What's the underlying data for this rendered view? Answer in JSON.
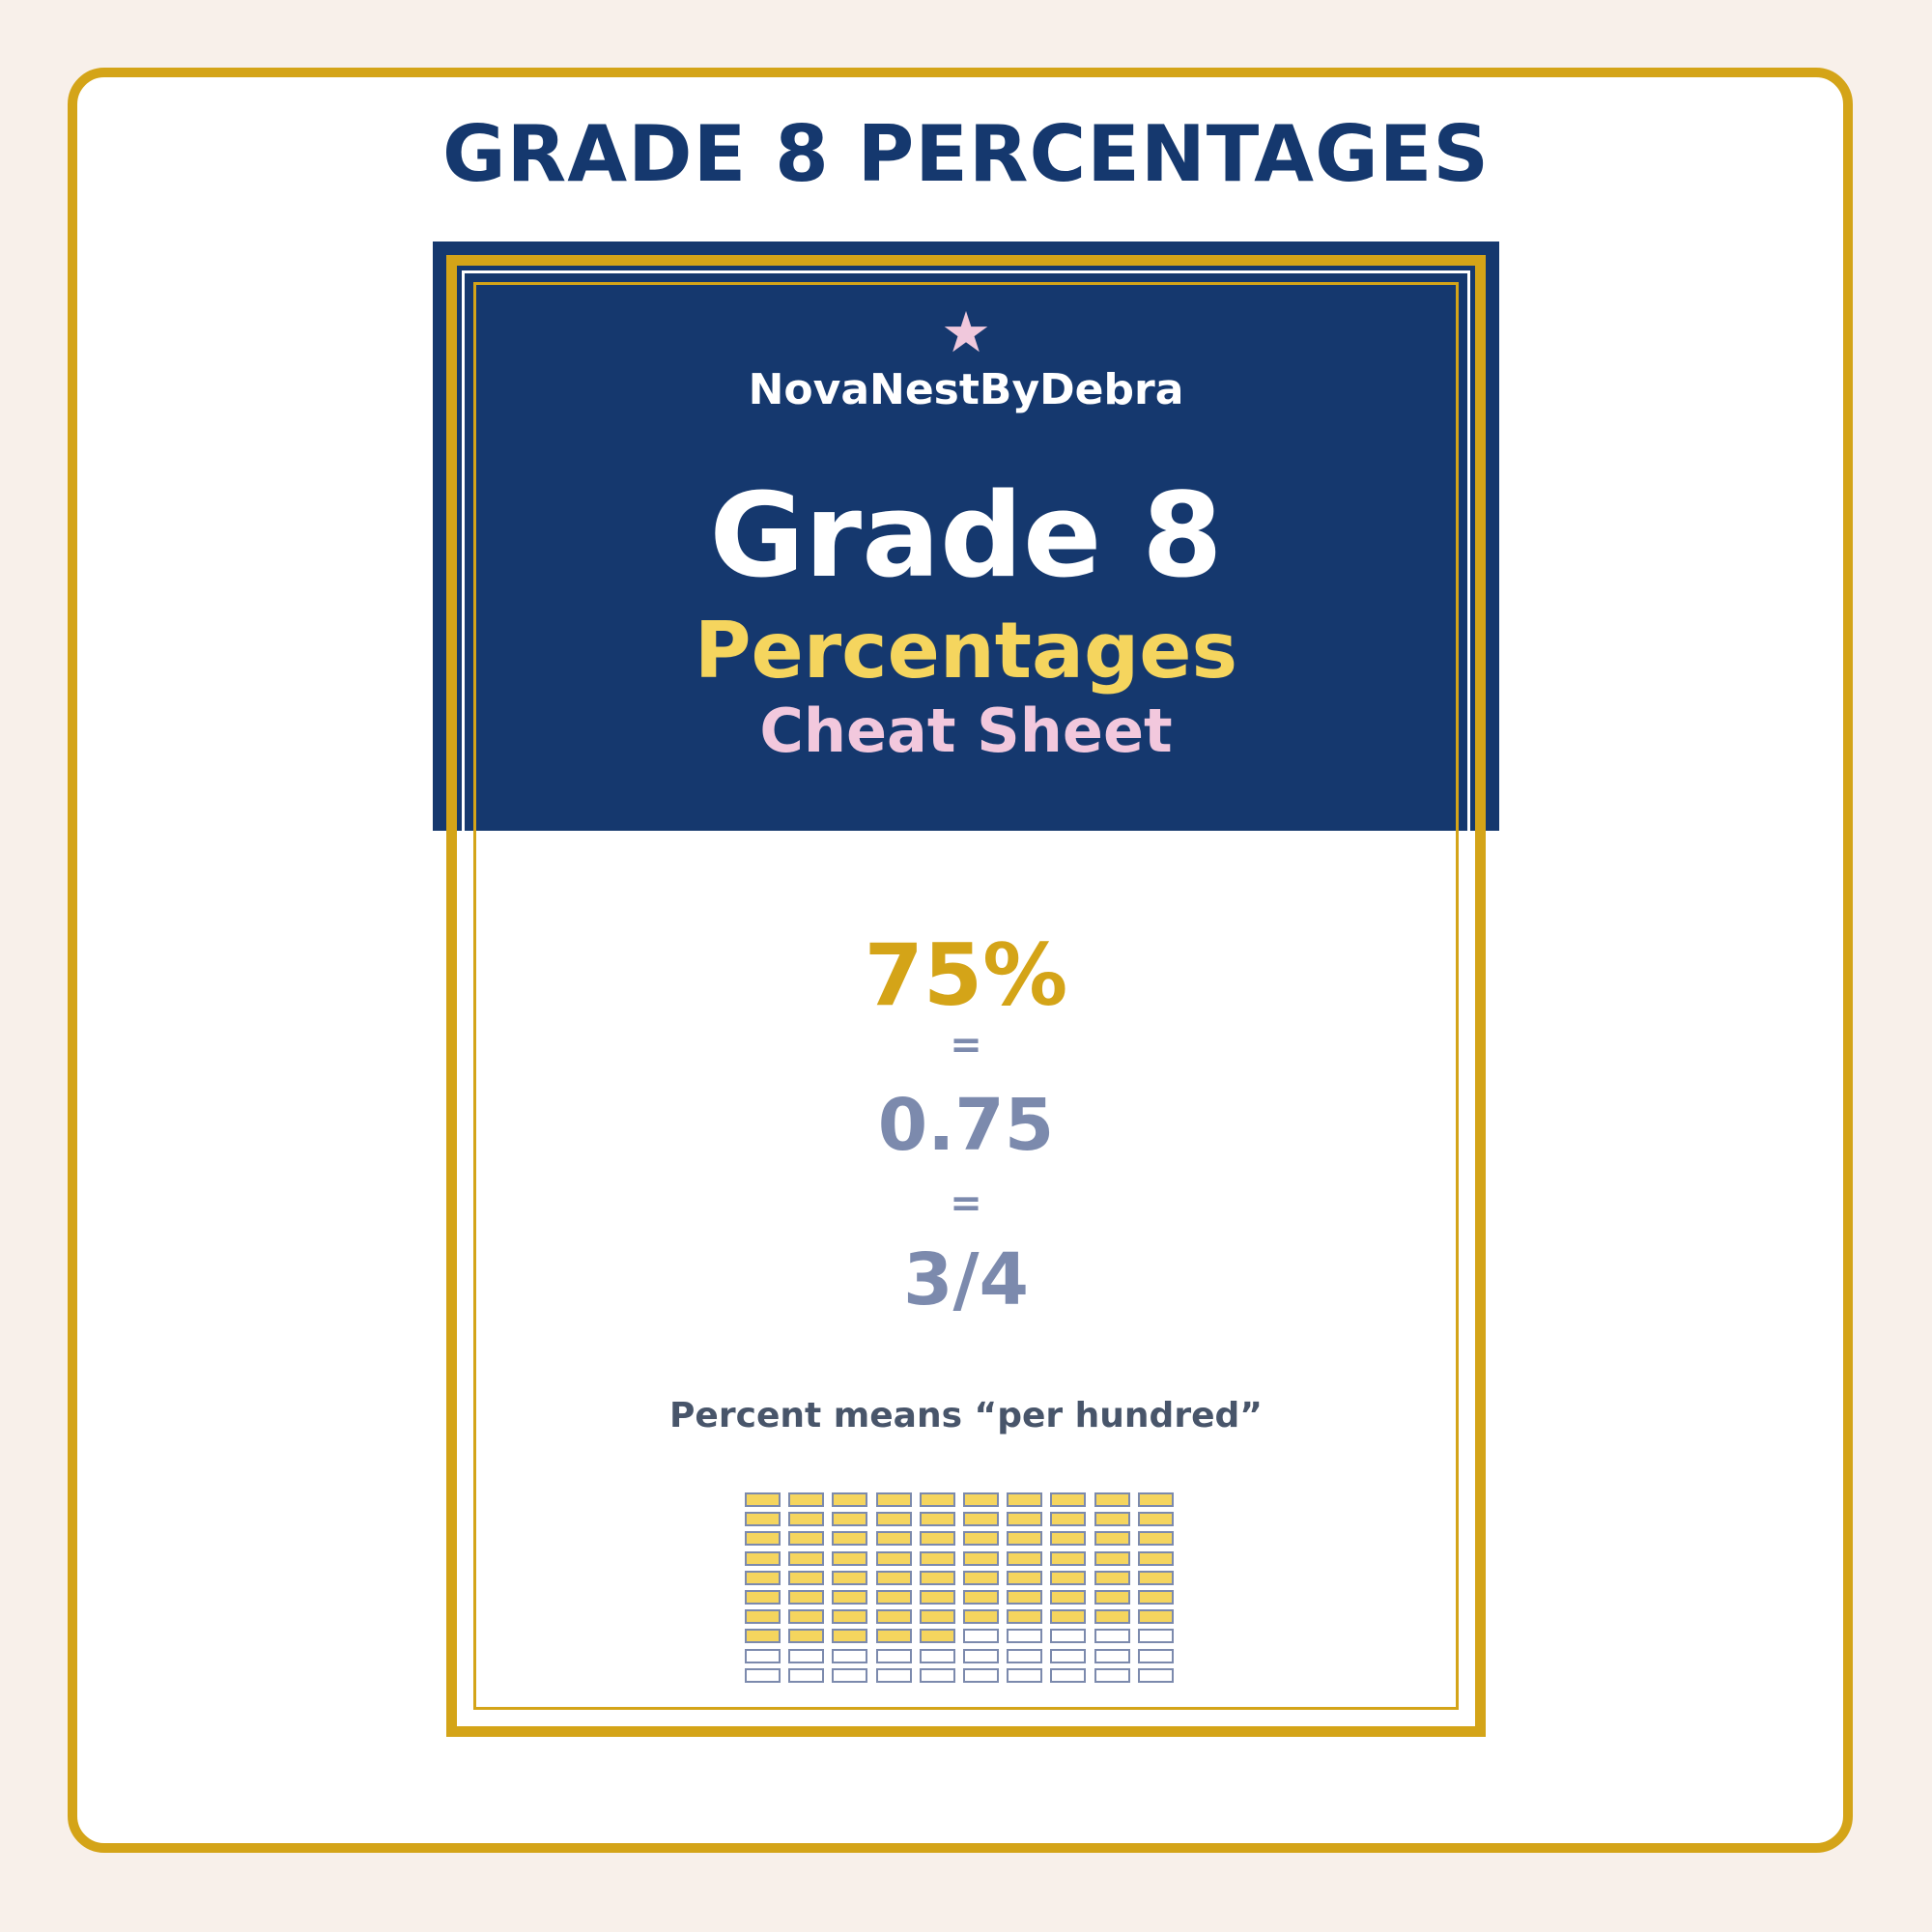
{
  "header": {
    "title": "GRADE 8 PERCENTAGES"
  },
  "cover": {
    "star_icon": "★",
    "brand": "NovaNestByDebra",
    "grade": "Grade 8",
    "topic": "Percentages",
    "subtitle": "Cheat Sheet"
  },
  "example": {
    "percent": "75%",
    "equals": "=",
    "decimal": "0.75",
    "fraction": "3/4",
    "note": "Percent means “per hundred”"
  },
  "hundred_grid": {
    "rows": 10,
    "columns": 10,
    "filled_cells": 75
  },
  "colors": {
    "navy": "#15386e",
    "gold": "#d4a418",
    "yellow": "#f5d55e",
    "pink": "#f2c8dd",
    "slate": "#7c8aad",
    "text_gray": "#48556a",
    "background": "#f8f0ea"
  }
}
